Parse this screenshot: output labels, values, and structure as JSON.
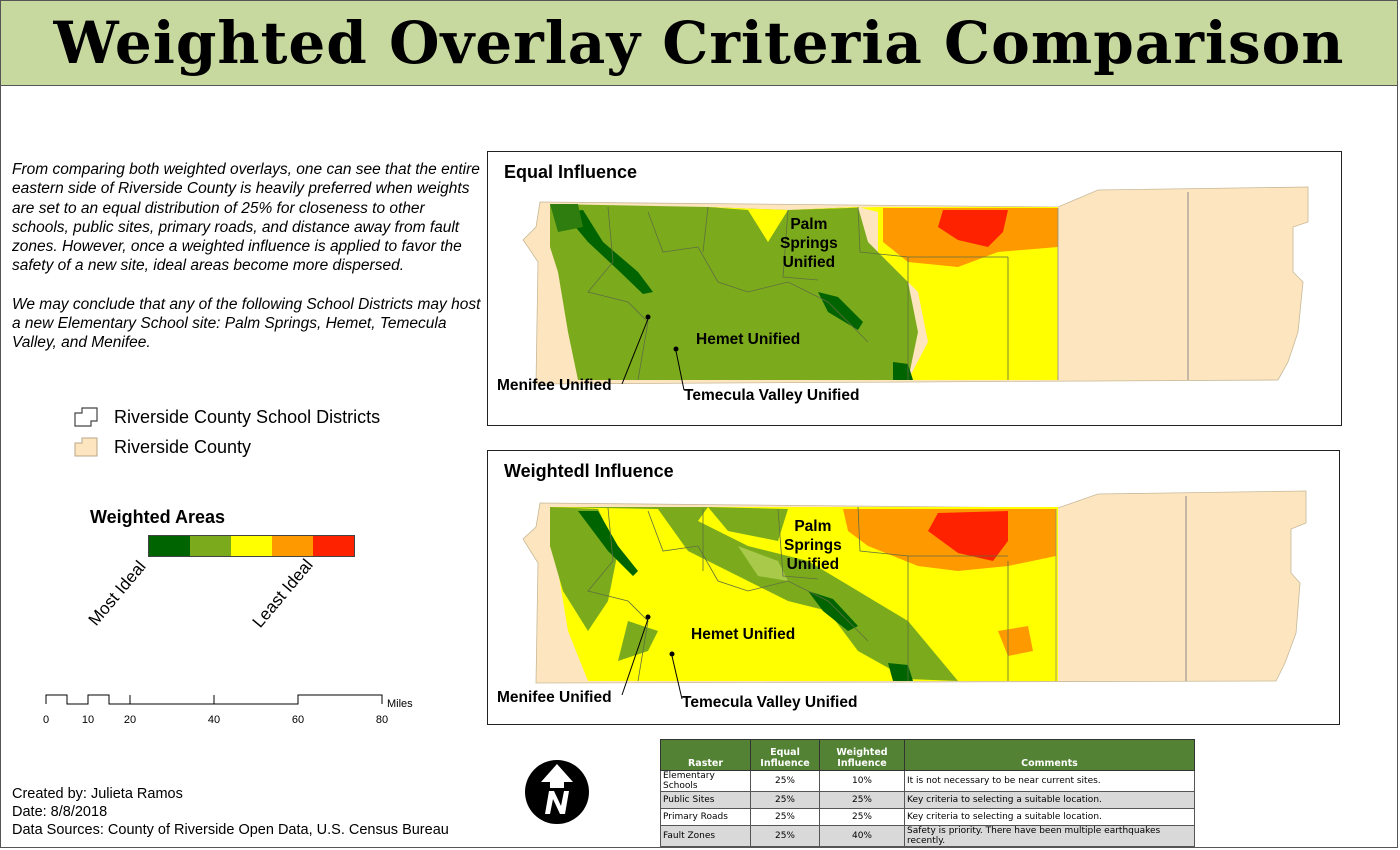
{
  "title": "Weighted Overlay Criteria Comparison",
  "description": {
    "paragraph1": "From comparing both weighted overlays, one can see that the entire eastern side of Riverside County is heavily preferred when weights are set to an equal distribution of 25% for closeness to other schools, public sites, primary roads, and distance away from fault zones. However, once a weighted influence is applied to favor the safety of a new site, ideal areas become more dispersed.",
    "paragraph2": "We may conclude that any of the following School Districts may host a new Elementary School site: Palm Springs, Hemet, Temecula Valley, and Menifee."
  },
  "legend": {
    "districts": "Riverside County School Districts",
    "county": "Riverside County",
    "weighted_title": "Weighted Areas",
    "most_ideal": "Most Ideal",
    "least_ideal": "Least Ideal",
    "ramp_colors": [
      "#006400",
      "#7bab1c",
      "#ffff00",
      "#ff9900",
      "#ff2200"
    ]
  },
  "scale": {
    "ticks": [
      "0",
      "10",
      "20",
      "40",
      "60",
      "80"
    ],
    "unit": "Miles"
  },
  "credits": {
    "created": "Created by: Julieta Ramos",
    "date": "Date: 8/8/2018",
    "sources": "Data Sources: County of Riverside Open Data, U.S. Census Bureau"
  },
  "maps": [
    {
      "title": "Equal Influence",
      "labels": {
        "palm": "Palm\nSprings\nUnified",
        "hemet": "Hemet Unified",
        "menifee": "Menifee Unified",
        "temecula": "Temecula Valley Unified"
      }
    },
    {
      "title": "Weightedl Influence",
      "labels": {
        "palm": "Palm\nSprings\nUnified",
        "hemet": "Hemet Unified",
        "menifee": "Menifee Unified",
        "temecula": "Temecula Valley Unified"
      }
    }
  ],
  "table": {
    "headers": [
      "Raster",
      "Equal Influence",
      "Weighted Influence",
      "Comments"
    ],
    "rows": [
      [
        "Elementary Schools",
        "25%",
        "10%",
        "It is not necessary to be near current sites."
      ],
      [
        "Public Sites",
        "25%",
        "25%",
        "Key criteria to selecting a suitable location."
      ],
      [
        "Primary Roads",
        "25%",
        "25%",
        "Key criteria to selecting a suitable location."
      ],
      [
        "Fault Zones",
        "25%",
        "40%",
        "Safety is priority. There have been multiple earthquakes recently."
      ]
    ]
  },
  "colors": {
    "title_bg": "#c8d9a0",
    "county": "#fde6bf",
    "table_header": "#548235"
  }
}
